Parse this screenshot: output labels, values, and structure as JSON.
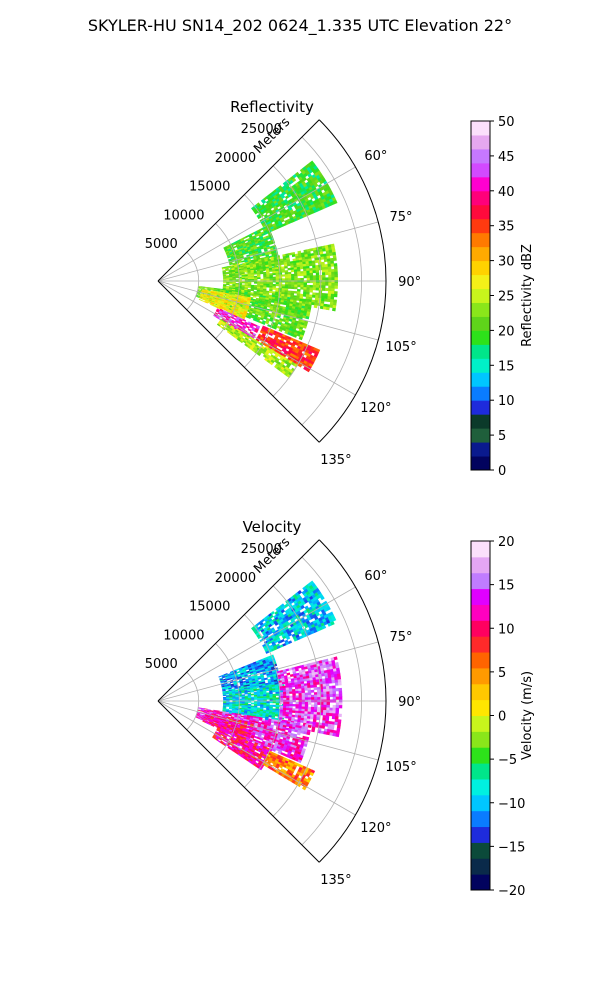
{
  "figure": {
    "suptitle": "SKYLER-HU  SN14_202  0624_1.335 UTC Elevation 22°"
  },
  "colors": {
    "reflectivity_ramp": [
      "#02035e",
      "#0a1a8e",
      "#1f5f3b",
      "#0b3a2a",
      "#1e2bdc",
      "#0a7cff",
      "#00c6ff",
      "#00f0c8",
      "#00e68a",
      "#2de21a",
      "#5fd41a",
      "#8ae61a",
      "#c8f51c",
      "#f4f018",
      "#ffd200",
      "#ffaa00",
      "#ff7a00",
      "#ff3a10",
      "#ff0a3c",
      "#ff007a",
      "#ff00d0",
      "#d24aff",
      "#c678ff",
      "#e6a8f0",
      "#fbe0fb"
    ],
    "velocity_ramp": [
      "#02035e",
      "#0a2a4a",
      "#0b4a3a",
      "#1e2bdc",
      "#0a7cff",
      "#00c6ff",
      "#00f0e0",
      "#00e68a",
      "#2de21a",
      "#8ae61a",
      "#c8f51c",
      "#ffe600",
      "#ffc800",
      "#ff9a00",
      "#ff6400",
      "#ff2a2a",
      "#ff0060",
      "#ff00c0",
      "#e000ff",
      "#c07cff",
      "#e4a6f4",
      "#fbe0fb"
    ],
    "grid": "#b0b0b0"
  },
  "chart_data": [
    {
      "type": "polar-sector",
      "title": "Reflectivity",
      "radial_label": "Meters",
      "r_ticks": [
        5000,
        10000,
        15000,
        20000,
        25000
      ],
      "r_max": 28000,
      "theta_ticks": [
        "60°",
        "75°",
        "90°",
        "105°",
        "120°",
        "135°"
      ],
      "theta_range_deg": [
        45,
        135
      ],
      "colorbar": {
        "label": "Reflectivity dBZ",
        "min": 0,
        "max": 50,
        "ticks": [
          "0",
          "5",
          "10",
          "15",
          "20",
          "25",
          "30",
          "35",
          "40",
          "45",
          "50"
        ]
      },
      "regions": [
        {
          "az": [
            52,
            66
          ],
          "r": [
            14500,
            24000
          ],
          "value": 19
        },
        {
          "az": [
            63,
            84
          ],
          "r": [
            9000,
            15000
          ],
          "value": 20
        },
        {
          "az": [
            78,
            99
          ],
          "r": [
            8000,
            22000
          ],
          "value": 22
        },
        {
          "az": [
            97,
            112
          ],
          "r": [
            5000,
            19000
          ],
          "value": 21
        },
        {
          "az": [
            100,
            114
          ],
          "r": [
            5500,
            11500
          ],
          "value": 27
        },
        {
          "az": [
            114,
            122
          ],
          "r": [
            8000,
            13500
          ],
          "value": 42
        },
        {
          "az": [
            113,
            121
          ],
          "r": [
            14000,
            21500
          ],
          "value": 36
        },
        {
          "az": [
            121,
            126
          ],
          "r": [
            9000,
            20000
          ],
          "value": 24
        }
      ]
    },
    {
      "type": "polar-sector",
      "title": "Velocity",
      "radial_label": "Meters",
      "r_ticks": [
        5000,
        10000,
        15000,
        20000,
        25000
      ],
      "r_max": 28000,
      "theta_ticks": [
        "60°",
        "75°",
        "90°",
        "105°",
        "120°",
        "135°"
      ],
      "theta_range_deg": [
        45,
        135
      ],
      "colorbar": {
        "label": "Velocity (m/s)",
        "min": -20,
        "max": 20,
        "ticks": [
          "−20",
          "−15",
          "−10",
          "−5",
          "0",
          "5",
          "10",
          "15",
          "20"
        ]
      },
      "regions": [
        {
          "az": [
            52,
            66
          ],
          "r": [
            14500,
            24000
          ],
          "value": -10
        },
        {
          "az": [
            68,
            84
          ],
          "r": [
            8000,
            15000
          ],
          "value": -11
        },
        {
          "az": [
            82,
            100
          ],
          "r": [
            8000,
            15500
          ],
          "value": -9
        },
        {
          "az": [
            76,
            101
          ],
          "r": [
            15000,
            22500
          ],
          "value": 15
        },
        {
          "az": [
            99,
            113
          ],
          "r": [
            5000,
            19000
          ],
          "value": 14
        },
        {
          "az": [
            103,
            114
          ],
          "r": [
            6000,
            12000
          ],
          "value": 11
        },
        {
          "az": [
            113,
            123
          ],
          "r": [
            8000,
            15000
          ],
          "value": 11
        },
        {
          "az": [
            114,
            121
          ],
          "r": [
            15000,
            21000
          ],
          "value": 6
        }
      ]
    }
  ]
}
